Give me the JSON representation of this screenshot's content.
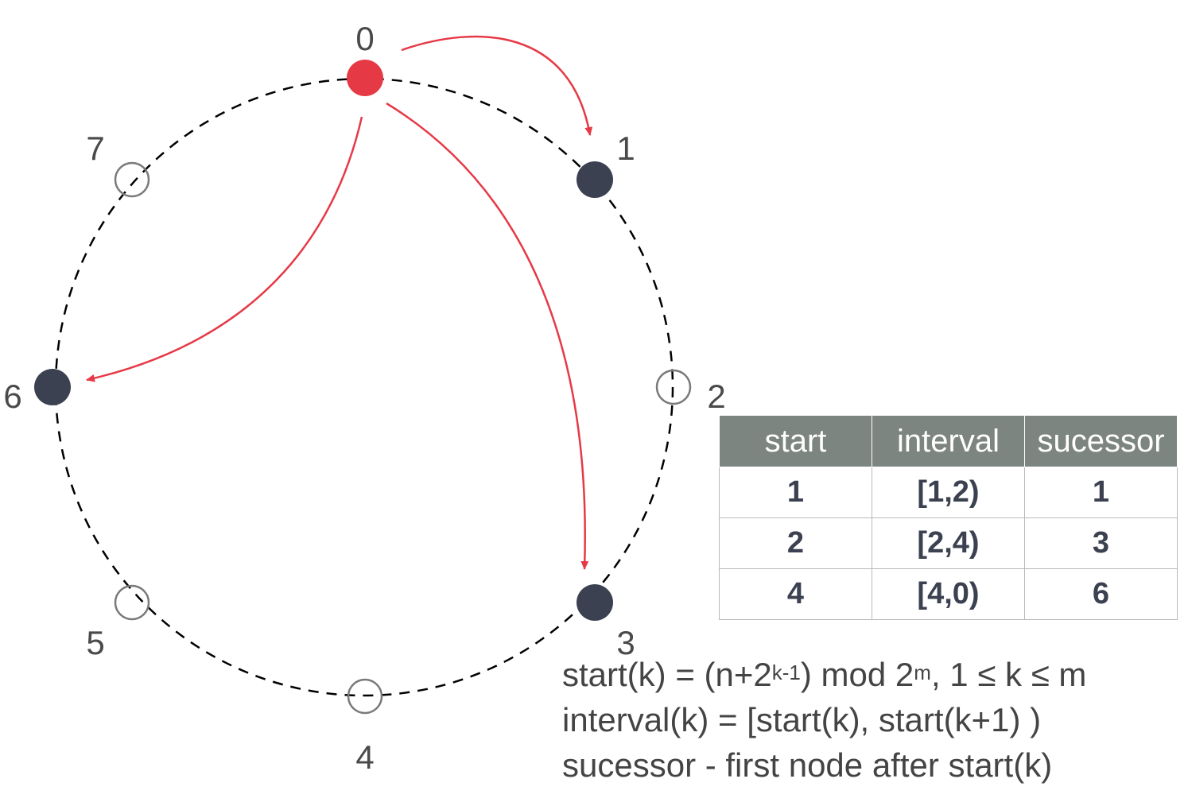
{
  "nodes": [
    {
      "id": "0",
      "label": "0",
      "state": "current"
    },
    {
      "id": "1",
      "label": "1",
      "state": "filled"
    },
    {
      "id": "2",
      "label": "2",
      "state": "empty"
    },
    {
      "id": "3",
      "label": "3",
      "state": "filled"
    },
    {
      "id": "4",
      "label": "4",
      "state": "empty"
    },
    {
      "id": "5",
      "label": "5",
      "state": "empty"
    },
    {
      "id": "6",
      "label": "6",
      "state": "filled"
    },
    {
      "id": "7",
      "label": "7",
      "state": "empty"
    }
  ],
  "arrows": [
    {
      "from": "0",
      "to": "1"
    },
    {
      "from": "0",
      "to": "3"
    },
    {
      "from": "0",
      "to": "6"
    }
  ],
  "colors": {
    "current": "#e63946",
    "filled": "#3b4150",
    "empty_stroke": "#7a7a7a",
    "arrow": "#e63946",
    "header_bg": "#7d8580"
  },
  "table": {
    "headers": {
      "start": "start",
      "interval": "interval",
      "successor": "sucessor"
    },
    "rows": [
      {
        "start": "1",
        "interval": "[1,2)",
        "successor": "1"
      },
      {
        "start": "2",
        "interval": "[2,4)",
        "successor": "3"
      },
      {
        "start": "4",
        "interval": "[4,0)",
        "successor": "6"
      }
    ]
  },
  "formulas": {
    "start_prefix": "start(k) = (n+2",
    "start_exp": "k-1",
    "start_mid": ") mod 2",
    "start_exp2": "m",
    "start_suffix": ", 1 ≤ k ≤ m",
    "interval": "interval(k)  = [start(k), start(k+1) )",
    "successor": "sucessor - first node after start(k)"
  }
}
